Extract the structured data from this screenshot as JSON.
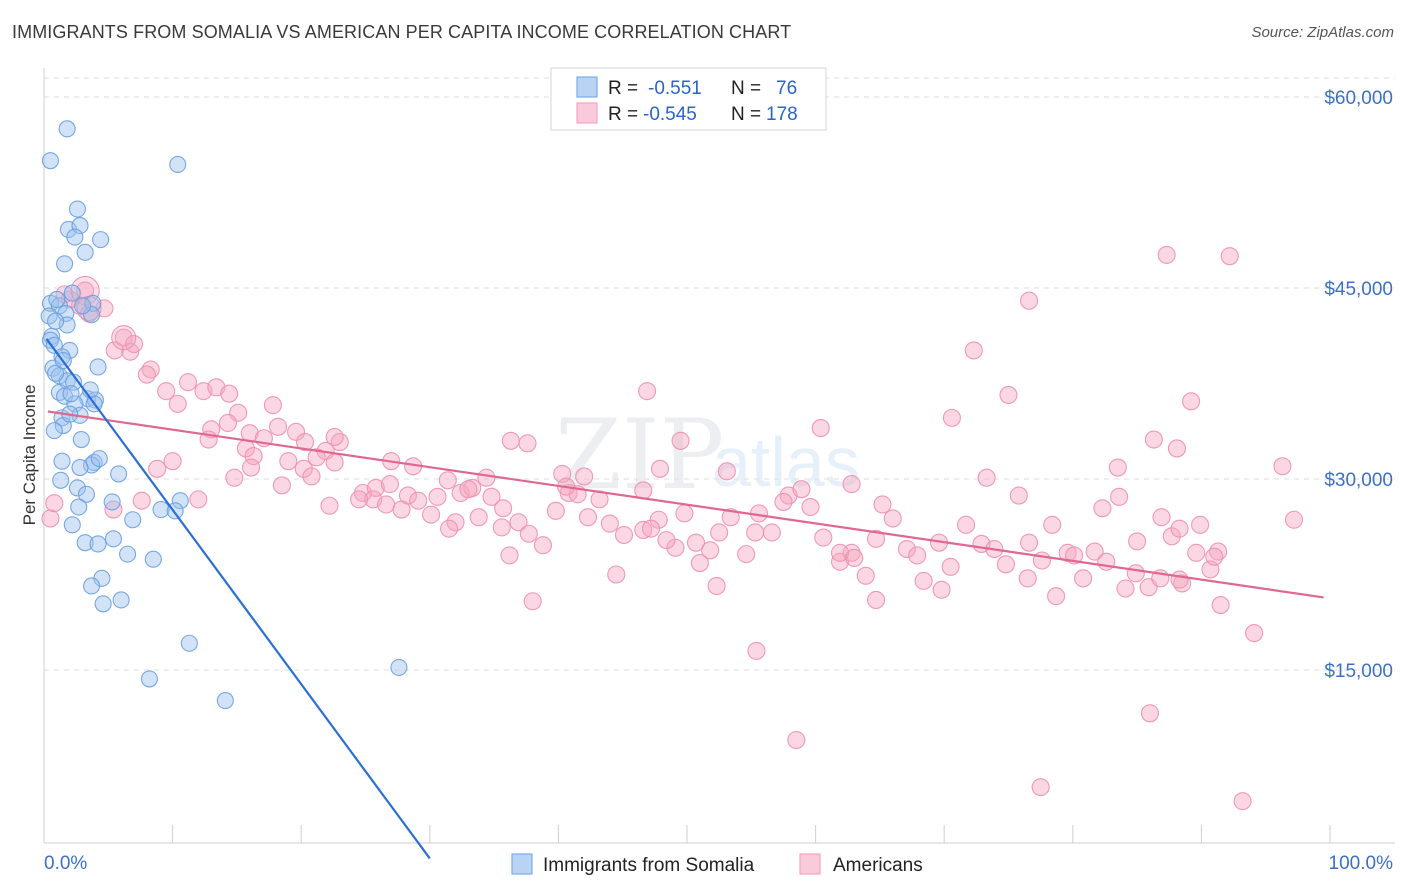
{
  "title": "IMMIGRANTS FROM SOMALIA VS AMERICAN PER CAPITA INCOME CORRELATION CHART",
  "source": "Source: ZipAtlas.com",
  "watermark": {
    "zip": "ZIP",
    "atlas": "atlas"
  },
  "colors": {
    "blue": "#7aaee8",
    "blue_line": "#2b6fd6",
    "pink": "#f4a6bf",
    "pink_line": "#e0678f",
    "axis_label": "#3d6fc5",
    "grid": "#dedede"
  },
  "stats_legend": {
    "rows": [
      {
        "r_label": "R =",
        "r_value": "-0.551",
        "n_label": "N =",
        "n_value": "76"
      },
      {
        "r_label": "R =",
        "r_value": "-0.545",
        "n_label": "N =",
        "n_value": "178"
      }
    ]
  },
  "chart_data": {
    "type": "scatter",
    "ylabel": "Per Capita Income",
    "xlim": [
      0,
      100
    ],
    "ylim": [
      0,
      63000
    ],
    "x_tick_labels": [
      "0.0%",
      "100.0%"
    ],
    "y_ticks": [
      15000,
      30000,
      45000,
      60000
    ],
    "y_tick_labels": [
      "$15,000",
      "$30,000",
      "$45,000",
      "$60,000"
    ],
    "grid": true,
    "legend_position": "bottom-center",
    "series": [
      {
        "name": "Immigrants from Somalia",
        "color": "#7aaee8",
        "trend": {
          "x": [
            0.2,
            30.0
          ],
          "y": [
            41000,
            200
          ]
        },
        "points": [
          [
            1.8,
            57500
          ],
          [
            0.5,
            55000
          ],
          [
            10.4,
            54700
          ],
          [
            2.6,
            51200
          ],
          [
            1.9,
            49600
          ],
          [
            2.8,
            49900
          ],
          [
            2.4,
            49000
          ],
          [
            4.4,
            48800
          ],
          [
            3.2,
            47800
          ],
          [
            1.6,
            46900
          ],
          [
            0.5,
            43800
          ],
          [
            1.2,
            43600
          ],
          [
            3.8,
            43800
          ],
          [
            0.4,
            42800
          ],
          [
            1.7,
            43000
          ],
          [
            3.7,
            42900
          ],
          [
            1.8,
            42100
          ],
          [
            0.6,
            41200
          ],
          [
            0.5,
            40900
          ],
          [
            0.8,
            40500
          ],
          [
            2.0,
            40100
          ],
          [
            1.4,
            39600
          ],
          [
            0.7,
            38700
          ],
          [
            4.2,
            38800
          ],
          [
            1.2,
            38100
          ],
          [
            1.8,
            37700
          ],
          [
            2.3,
            37600
          ],
          [
            1.2,
            36800
          ],
          [
            1.6,
            36500
          ],
          [
            3.4,
            36300
          ],
          [
            4.0,
            36200
          ],
          [
            3.9,
            35900
          ],
          [
            2.4,
            35900
          ],
          [
            2.8,
            35000
          ],
          [
            1.4,
            34800
          ],
          [
            1.5,
            34200
          ],
          [
            2.9,
            33100
          ],
          [
            1.4,
            31400
          ],
          [
            3.9,
            31300
          ],
          [
            3.7,
            31100
          ],
          [
            2.8,
            30900
          ],
          [
            2.6,
            29300
          ],
          [
            3.3,
            28800
          ],
          [
            5.3,
            28200
          ],
          [
            9.1,
            27600
          ],
          [
            10.6,
            28300
          ],
          [
            10.2,
            27500
          ],
          [
            6.9,
            26800
          ],
          [
            2.2,
            26400
          ],
          [
            5.4,
            25300
          ],
          [
            3.2,
            25000
          ],
          [
            4.2,
            24900
          ],
          [
            6.5,
            24100
          ],
          [
            8.5,
            23700
          ],
          [
            4.5,
            22200
          ],
          [
            3.7,
            21600
          ],
          [
            4.6,
            20200
          ],
          [
            6.0,
            20500
          ],
          [
            11.3,
            17100
          ],
          [
            8.2,
            14300
          ],
          [
            14.1,
            12600
          ],
          [
            27.6,
            15200
          ],
          [
            0.9,
            38300
          ],
          [
            2.1,
            36700
          ],
          [
            1.0,
            44100
          ],
          [
            3.0,
            43600
          ],
          [
            2.2,
            44600
          ],
          [
            0.9,
            42400
          ],
          [
            1.5,
            39300
          ],
          [
            3.6,
            37000
          ],
          [
            2.0,
            35100
          ],
          [
            0.8,
            33800
          ],
          [
            4.3,
            31600
          ],
          [
            5.8,
            30400
          ],
          [
            1.3,
            29900
          ],
          [
            2.7,
            27800
          ]
        ]
      },
      {
        "name": "Americans",
        "color": "#f4a6bf",
        "trend": {
          "x": [
            0.3,
            99.5
          ],
          "y": [
            35300,
            20700
          ]
        },
        "points": [
          [
            3.2,
            44800
          ],
          [
            2.8,
            43600
          ],
          [
            4.7,
            43400
          ],
          [
            2.0,
            44100
          ],
          [
            1.6,
            44500
          ],
          [
            3.5,
            43000
          ],
          [
            6.2,
            41100
          ],
          [
            6.7,
            40000
          ],
          [
            7.0,
            40600
          ],
          [
            8.3,
            38600
          ],
          [
            5.5,
            40100
          ],
          [
            8.0,
            38200
          ],
          [
            9.5,
            36900
          ],
          [
            10.4,
            35900
          ],
          [
            11.2,
            37600
          ],
          [
            12.4,
            36900
          ],
          [
            13.4,
            37200
          ],
          [
            14.4,
            36700
          ],
          [
            15.1,
            35200
          ],
          [
            14.3,
            34400
          ],
          [
            17.8,
            35800
          ],
          [
            13.0,
            33900
          ],
          [
            16.0,
            33600
          ],
          [
            17.1,
            33200
          ],
          [
            18.2,
            34100
          ],
          [
            19.6,
            33700
          ],
          [
            20.3,
            32900
          ],
          [
            21.9,
            32200
          ],
          [
            12.8,
            33100
          ],
          [
            15.7,
            32400
          ],
          [
            16.3,
            31800
          ],
          [
            19.0,
            31400
          ],
          [
            21.2,
            31700
          ],
          [
            22.6,
            31300
          ],
          [
            23.0,
            32900
          ],
          [
            20.2,
            30800
          ],
          [
            24.8,
            28900
          ],
          [
            25.8,
            29300
          ],
          [
            26.9,
            29600
          ],
          [
            27.0,
            31400
          ],
          [
            28.3,
            28700
          ],
          [
            29.1,
            28300
          ],
          [
            30.6,
            28600
          ],
          [
            31.4,
            29900
          ],
          [
            32.4,
            28900
          ],
          [
            33.3,
            29300
          ],
          [
            34.4,
            30100
          ],
          [
            34.8,
            28600
          ],
          [
            35.7,
            27700
          ],
          [
            25.6,
            28400
          ],
          [
            26.6,
            28000
          ],
          [
            27.8,
            27600
          ],
          [
            30.1,
            27200
          ],
          [
            32.0,
            26600
          ],
          [
            33.8,
            27000
          ],
          [
            35.6,
            26200
          ],
          [
            36.9,
            26600
          ],
          [
            37.7,
            25700
          ],
          [
            38.8,
            24800
          ],
          [
            39.8,
            27500
          ],
          [
            40.8,
            28900
          ],
          [
            40.3,
            30400
          ],
          [
            41.5,
            28800
          ],
          [
            42.3,
            27000
          ],
          [
            43.2,
            28400
          ],
          [
            44.0,
            26500
          ],
          [
            45.1,
            25600
          ],
          [
            46.6,
            26000
          ],
          [
            47.8,
            26800
          ],
          [
            49.1,
            24600
          ],
          [
            47.9,
            30800
          ],
          [
            46.6,
            29100
          ],
          [
            49.8,
            27300
          ],
          [
            50.7,
            25000
          ],
          [
            51.8,
            24400
          ],
          [
            52.5,
            25800
          ],
          [
            53.4,
            27000
          ],
          [
            54.6,
            24100
          ],
          [
            55.3,
            25800
          ],
          [
            56.6,
            25800
          ],
          [
            57.9,
            28700
          ],
          [
            58.9,
            29200
          ],
          [
            59.6,
            27800
          ],
          [
            60.6,
            25400
          ],
          [
            61.9,
            23500
          ],
          [
            62.8,
            24200
          ],
          [
            63.9,
            22400
          ],
          [
            64.7,
            25300
          ],
          [
            65.2,
            28000
          ],
          [
            66.0,
            26900
          ],
          [
            67.1,
            24500
          ],
          [
            68.4,
            22000
          ],
          [
            69.6,
            25000
          ],
          [
            70.5,
            23100
          ],
          [
            71.7,
            26400
          ],
          [
            72.9,
            24900
          ],
          [
            73.9,
            24500
          ],
          [
            74.8,
            23300
          ],
          [
            76.6,
            25000
          ],
          [
            77.6,
            23600
          ],
          [
            78.7,
            20800
          ],
          [
            79.6,
            24200
          ],
          [
            80.8,
            22200
          ],
          [
            81.7,
            24300
          ],
          [
            82.3,
            27700
          ],
          [
            83.6,
            28600
          ],
          [
            84.9,
            22600
          ],
          [
            85.9,
            21500
          ],
          [
            86.8,
            22200
          ],
          [
            87.7,
            25500
          ],
          [
            88.5,
            21800
          ],
          [
            89.6,
            24200
          ],
          [
            90.7,
            22900
          ],
          [
            91.3,
            24300
          ],
          [
            94.1,
            17900
          ],
          [
            96.3,
            31000
          ],
          [
            97.2,
            26800
          ],
          [
            46.9,
            36900
          ],
          [
            49.5,
            33000
          ],
          [
            22.6,
            33300
          ],
          [
            33.0,
            29200
          ],
          [
            36.3,
            33000
          ],
          [
            37.6,
            32800
          ],
          [
            42.0,
            30200
          ],
          [
            47.2,
            26100
          ],
          [
            52.3,
            21600
          ],
          [
            57.5,
            28200
          ],
          [
            61.9,
            24200
          ],
          [
            63.0,
            23800
          ],
          [
            67.9,
            24000
          ],
          [
            69.8,
            21300
          ],
          [
            73.3,
            30100
          ],
          [
            75.8,
            28700
          ],
          [
            78.4,
            26400
          ],
          [
            80.1,
            24000
          ],
          [
            82.6,
            23500
          ],
          [
            84.1,
            21400
          ],
          [
            85.0,
            25100
          ],
          [
            86.9,
            27000
          ],
          [
            88.3,
            22100
          ],
          [
            89.9,
            26400
          ],
          [
            91.5,
            20100
          ],
          [
            70.6,
            34800
          ],
          [
            72.3,
            40100
          ],
          [
            76.6,
            44000
          ],
          [
            75.0,
            36600
          ],
          [
            83.5,
            30900
          ],
          [
            86.3,
            33100
          ],
          [
            89.2,
            36100
          ],
          [
            88.3,
            26100
          ],
          [
            92.2,
            47500
          ],
          [
            87.3,
            47600
          ],
          [
            91.0,
            23900
          ],
          [
            76.5,
            22200
          ],
          [
            60.4,
            34000
          ],
          [
            55.4,
            16500
          ],
          [
            58.5,
            9500
          ],
          [
            77.5,
            5800
          ],
          [
            86.0,
            11600
          ],
          [
            93.2,
            4700
          ],
          [
            88.1,
            32400
          ],
          [
            62.8,
            29600
          ],
          [
            64.7,
            20500
          ],
          [
            55.6,
            27300
          ],
          [
            53.1,
            30600
          ],
          [
            51.0,
            23400
          ],
          [
            48.4,
            25200
          ],
          [
            44.5,
            22500
          ],
          [
            40.6,
            29400
          ],
          [
            38.0,
            20400
          ],
          [
            36.2,
            24000
          ],
          [
            31.5,
            26100
          ],
          [
            28.7,
            31000
          ],
          [
            24.5,
            28400
          ],
          [
            22.2,
            27900
          ],
          [
            20.8,
            30200
          ],
          [
            18.5,
            29500
          ],
          [
            16.1,
            30900
          ],
          [
            14.8,
            30100
          ],
          [
            12.0,
            28400
          ],
          [
            10.0,
            31400
          ],
          [
            8.8,
            30800
          ],
          [
            7.6,
            28300
          ],
          [
            5.4,
            27600
          ],
          [
            0.5,
            26900
          ],
          [
            0.8,
            28100
          ]
        ]
      }
    ]
  },
  "bottom_legend": [
    {
      "label": "Immigrants from Somalia",
      "color": "#7aaee8"
    },
    {
      "label": "Americans",
      "color": "#f4a6bf"
    }
  ]
}
